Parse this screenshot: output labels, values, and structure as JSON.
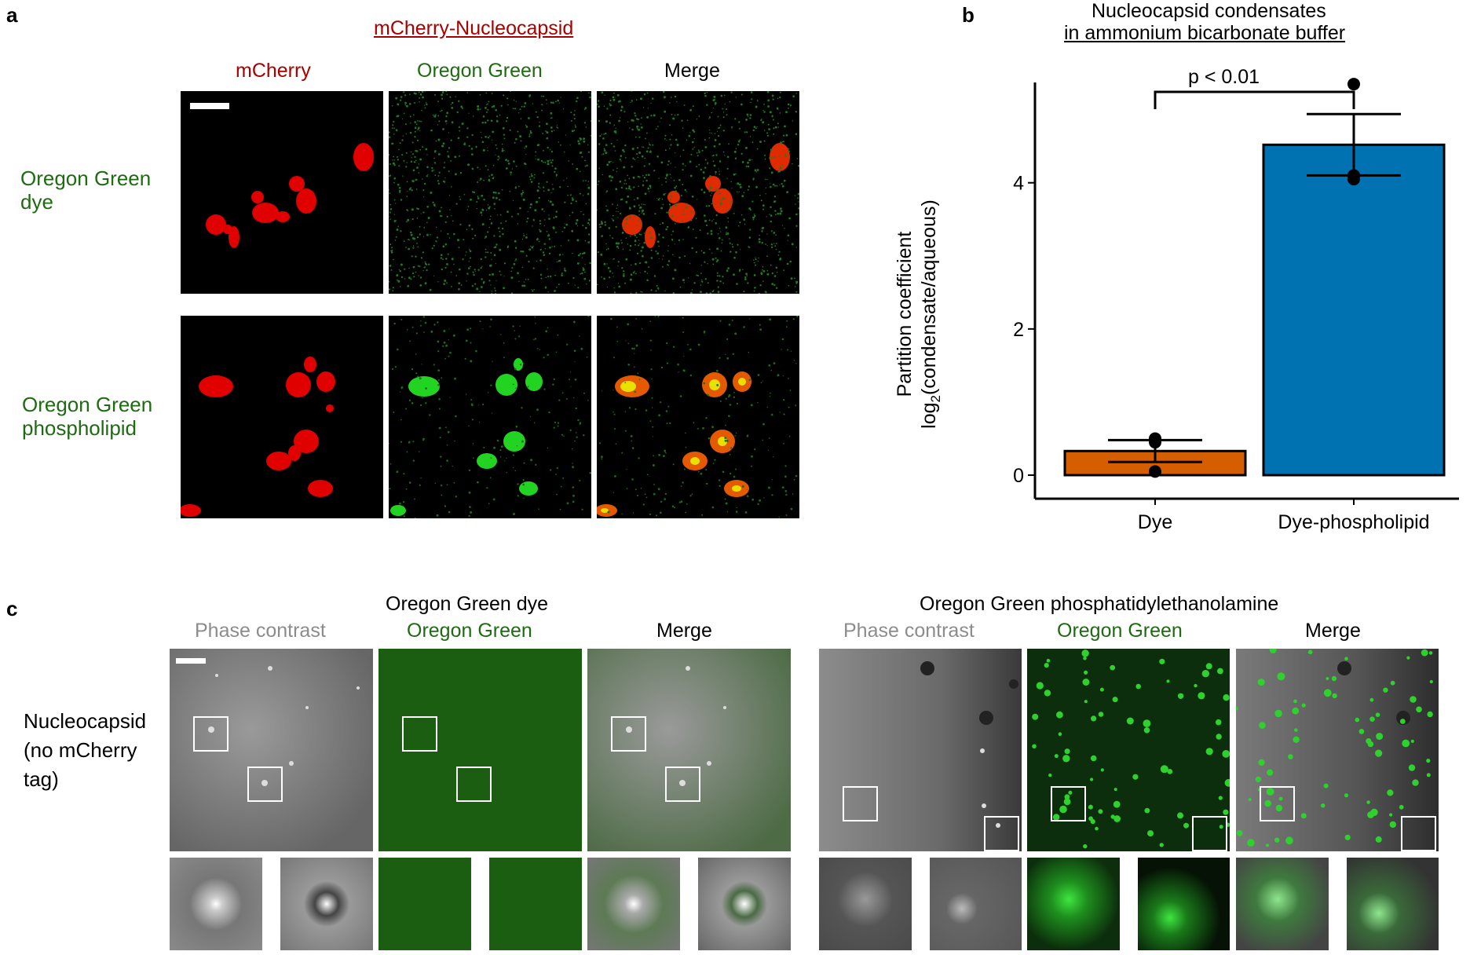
{
  "panel_a": {
    "letter": "a",
    "title": "mCherry-Nucleocapsid",
    "columns": [
      "mCherry",
      "Oregon Green",
      "Merge"
    ],
    "rows": [
      {
        "line1": "Oregon Green",
        "line2": "dye"
      },
      {
        "line1": "Oregon Green",
        "line2": "phospholipid"
      }
    ]
  },
  "panel_b": {
    "letter": "b",
    "title_line1": "Nucleocapsid condensates",
    "title_line2": "in ammonium bicarbonate buffer",
    "significance": "p < 0.01",
    "ylabel_line1": "Partition coefficient",
    "ylabel_line2_pre": "log",
    "ylabel_line2_sub": "2",
    "ylabel_line2_post": "(condensate/aqueous)"
  },
  "chart_data": {
    "type": "bar",
    "categories": [
      "Dye",
      "Dye-phospholipid"
    ],
    "values": [
      0.33,
      4.52
    ],
    "error": [
      0.15,
      0.42
    ],
    "points": [
      [
        0.05,
        0.45,
        0.5
      ],
      [
        4.05,
        4.1,
        5.35
      ]
    ],
    "colors": [
      "#d55e00",
      "#0072b2"
    ],
    "ylim": [
      0,
      5.6
    ],
    "yticks": [
      0,
      2,
      4
    ],
    "ylabel": "Partition coefficient log2(condensate/aqueous)",
    "title": "Nucleocapsid condensates in ammonium bicarbonate buffer",
    "annotation": "p < 0.01",
    "grid": false
  },
  "panel_c": {
    "letter": "c",
    "group1": {
      "title": "Oregon Green dye",
      "columns": [
        "Phase contrast",
        "Oregon Green",
        "Merge"
      ]
    },
    "group2": {
      "title": "Oregon Green phosphatidylethanolamine",
      "columns": [
        "Phase contrast",
        "Oregon Green",
        "Merge"
      ]
    },
    "row_label": [
      "Nucleocapsid",
      "(no mCherry",
      "tag)"
    ]
  }
}
